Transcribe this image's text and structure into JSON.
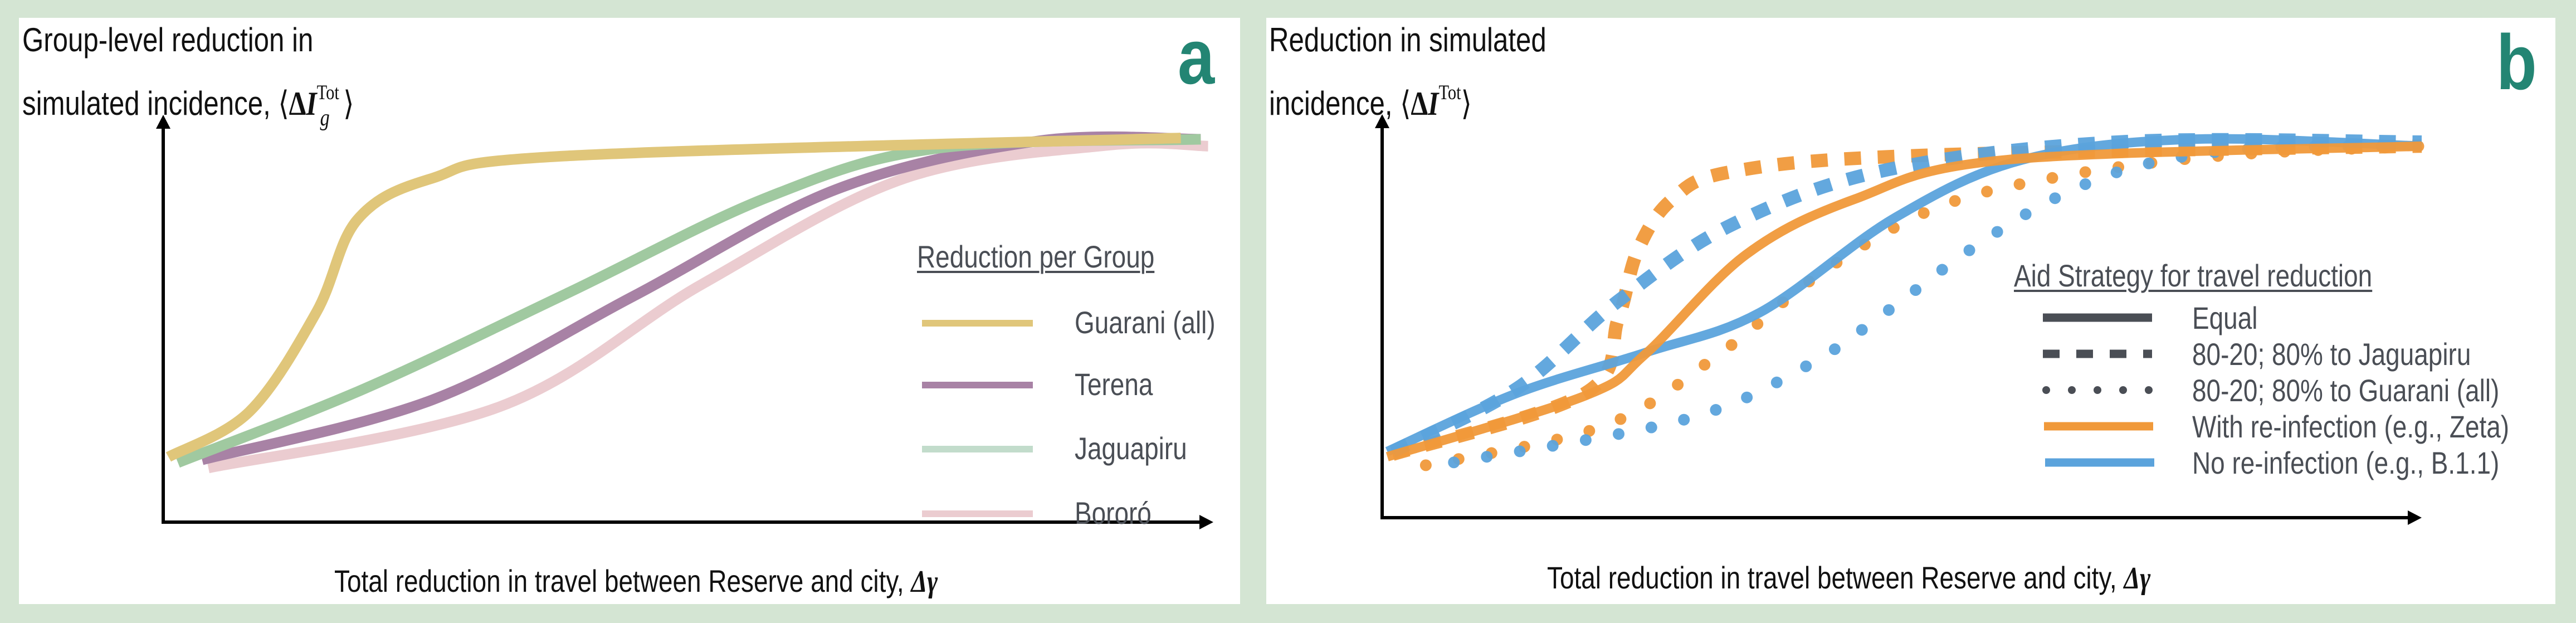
{
  "colors": {
    "background": "#d4e5d3",
    "panel_letter": "#238573",
    "axis": "#000000",
    "legend_text": "#4a4e55",
    "guarani": "#e0c67a",
    "terena": "#a882a5",
    "jaguapiru": "#a0c9a0",
    "jaguapiru_legend": "#c2dccb",
    "bororo": "#ebccd0",
    "with_reinfection": "#f0993a",
    "no_reinfection": "#5ba3dc"
  },
  "chart_data": [
    {
      "type": "line",
      "panel_letter": "a",
      "ylabel": {
        "text": "Group-level reduction in",
        "line2": "simulated incidence, ",
        "math_delta": "Δ",
        "math_var": "I",
        "math_sub": "g",
        "math_sup": "Tot",
        "open": "⟨",
        "close": "⟩"
      },
      "xlabel": {
        "text": "Total reduction in travel between Reserve and city, ",
        "math": "Δγ"
      },
      "xlim": [
        0,
        1
      ],
      "ylim": [
        0,
        1
      ],
      "grid": false,
      "ticks": "none",
      "legend": {
        "title": "Reduction per Group",
        "placement": "right",
        "entries": [
          "Guarani (all)",
          "Terena",
          "Jaguapiru",
          "Bororó"
        ]
      },
      "series": [
        {
          "name": "Guarani (all)",
          "color_key": "guarani",
          "legend_color_key": "guarani",
          "style": "solid",
          "points": [
            [
              0.005,
              0.16
            ],
            [
              0.082,
              0.271
            ],
            [
              0.146,
              0.516
            ],
            [
              0.185,
              0.743
            ],
            [
              0.256,
              0.844
            ],
            [
              0.384,
              0.899
            ],
            [
              0.969,
              0.943
            ]
          ]
        },
        {
          "name": "Jaguapiru",
          "color_key": "jaguapiru",
          "legend_color_key": "jaguapiru_legend",
          "style": "solid",
          "points": [
            [
              0.014,
              0.146
            ],
            [
              0.192,
              0.328
            ],
            [
              0.384,
              0.561
            ],
            [
              0.577,
              0.799
            ],
            [
              0.738,
              0.918
            ],
            [
              0.988,
              0.94
            ]
          ]
        },
        {
          "name": "Terena",
          "color_key": "terena",
          "legend_color_key": "terena",
          "style": "solid",
          "points": [
            [
              0.037,
              0.153
            ],
            [
              0.256,
              0.3
            ],
            [
              0.448,
              0.555
            ],
            [
              0.641,
              0.817
            ],
            [
              0.834,
              0.936
            ],
            [
              0.988,
              0.94
            ]
          ]
        },
        {
          "name": "Bororó",
          "color_key": "bororo",
          "legend_color_key": "bororo",
          "style": "solid",
          "points": [
            [
              0.043,
              0.133
            ],
            [
              0.32,
              0.283
            ],
            [
              0.513,
              0.584
            ],
            [
              0.706,
              0.844
            ],
            [
              0.899,
              0.925
            ],
            [
              0.995,
              0.923
            ]
          ]
        }
      ]
    },
    {
      "type": "line",
      "panel_letter": "b",
      "ylabel": {
        "text": "Reduction in simulated",
        "line2": "incidence, ",
        "math_delta": "Δ",
        "math_var": "I",
        "math_sup": "Tot",
        "open": "⟨",
        "close": "⟩"
      },
      "xlabel": {
        "text": "Total reduction in travel between Reserve and city, ",
        "math": "Δγ"
      },
      "xlim": [
        0,
        1
      ],
      "ylim": [
        0,
        1
      ],
      "grid": false,
      "ticks": "none",
      "legend": {
        "title": "Aid Strategy for travel reduction",
        "placement": "right",
        "entries": [
          {
            "label": "Equal",
            "style": "solid",
            "color_key": "legend_text"
          },
          {
            "label": "80-20; 80% to Jaguapiru",
            "style": "dashed",
            "color_key": "legend_text"
          },
          {
            "label": "80-20; 80% to Guarani (all)",
            "style": "dotted",
            "color_key": "legend_text"
          },
          {
            "label": "With re-infection (e.g., Zeta)",
            "style": "solid",
            "color_key": "with_reinfection"
          },
          {
            "label": "No re-infection (e.g., B.1.1)",
            "style": "solid",
            "color_key": "no_reinfection"
          }
        ]
      },
      "series": [
        {
          "name": "Equal, with re-infection",
          "color_key": "with_reinfection",
          "style": "solid",
          "points": [
            [
              0.005,
              0.151
            ],
            [
              0.195,
              0.302
            ],
            [
              0.253,
              0.405
            ],
            [
              0.35,
              0.652
            ],
            [
              0.454,
              0.789
            ],
            [
              0.6,
              0.887
            ],
            [
              1.0,
              0.921
            ]
          ]
        },
        {
          "name": "Equal, no re-infection",
          "color_key": "no_reinfection",
          "style": "solid",
          "points": [
            [
              0.005,
              0.164
            ],
            [
              0.129,
              0.308
            ],
            [
              0.253,
              0.409
            ],
            [
              0.363,
              0.508
            ],
            [
              0.493,
              0.743
            ],
            [
              0.616,
              0.887
            ],
            [
              0.779,
              0.938
            ],
            [
              1.0,
              0.921
            ]
          ]
        },
        {
          "name": "80-20 Jaguapiru, with re-infection",
          "color_key": "with_reinfection",
          "style": "dashed",
          "points": [
            [
              0.01,
              0.157
            ],
            [
              0.195,
              0.308
            ],
            [
              0.227,
              0.492
            ],
            [
              0.246,
              0.663
            ],
            [
              0.279,
              0.789
            ],
            [
              0.337,
              0.858
            ],
            [
              0.519,
              0.898
            ],
            [
              1.0,
              0.921
            ]
          ]
        },
        {
          "name": "80-20 Jaguapiru, no re-infection",
          "color_key": "no_reinfection",
          "style": "dashed",
          "points": [
            [
              0.01,
              0.164
            ],
            [
              0.129,
              0.319
            ],
            [
              0.227,
              0.537
            ],
            [
              0.337,
              0.727
            ],
            [
              0.487,
              0.863
            ],
            [
              0.714,
              0.932
            ],
            [
              1.0,
              0.931
            ]
          ]
        },
        {
          "name": "80-20 Guarani, with re-infection",
          "color_key": "with_reinfection",
          "style": "dotted",
          "points": [
            [
              0.042,
              0.13
            ],
            [
              0.214,
              0.228
            ],
            [
              0.324,
              0.405
            ],
            [
              0.422,
              0.606
            ],
            [
              0.532,
              0.767
            ],
            [
              0.655,
              0.847
            ],
            [
              0.811,
              0.898
            ],
            [
              1.0,
              0.921
            ]
          ]
        },
        {
          "name": "80-20 Guarani, no re-infection",
          "color_key": "no_reinfection",
          "style": "dotted",
          "points": [
            [
              0.069,
              0.137
            ],
            [
              0.292,
              0.244
            ],
            [
              0.409,
              0.377
            ],
            [
              0.487,
              0.514
            ],
            [
              0.565,
              0.663
            ],
            [
              0.649,
              0.794
            ],
            [
              0.734,
              0.876
            ],
            [
              0.844,
              0.916
            ],
            [
              0.991,
              0.921
            ]
          ]
        }
      ]
    }
  ]
}
